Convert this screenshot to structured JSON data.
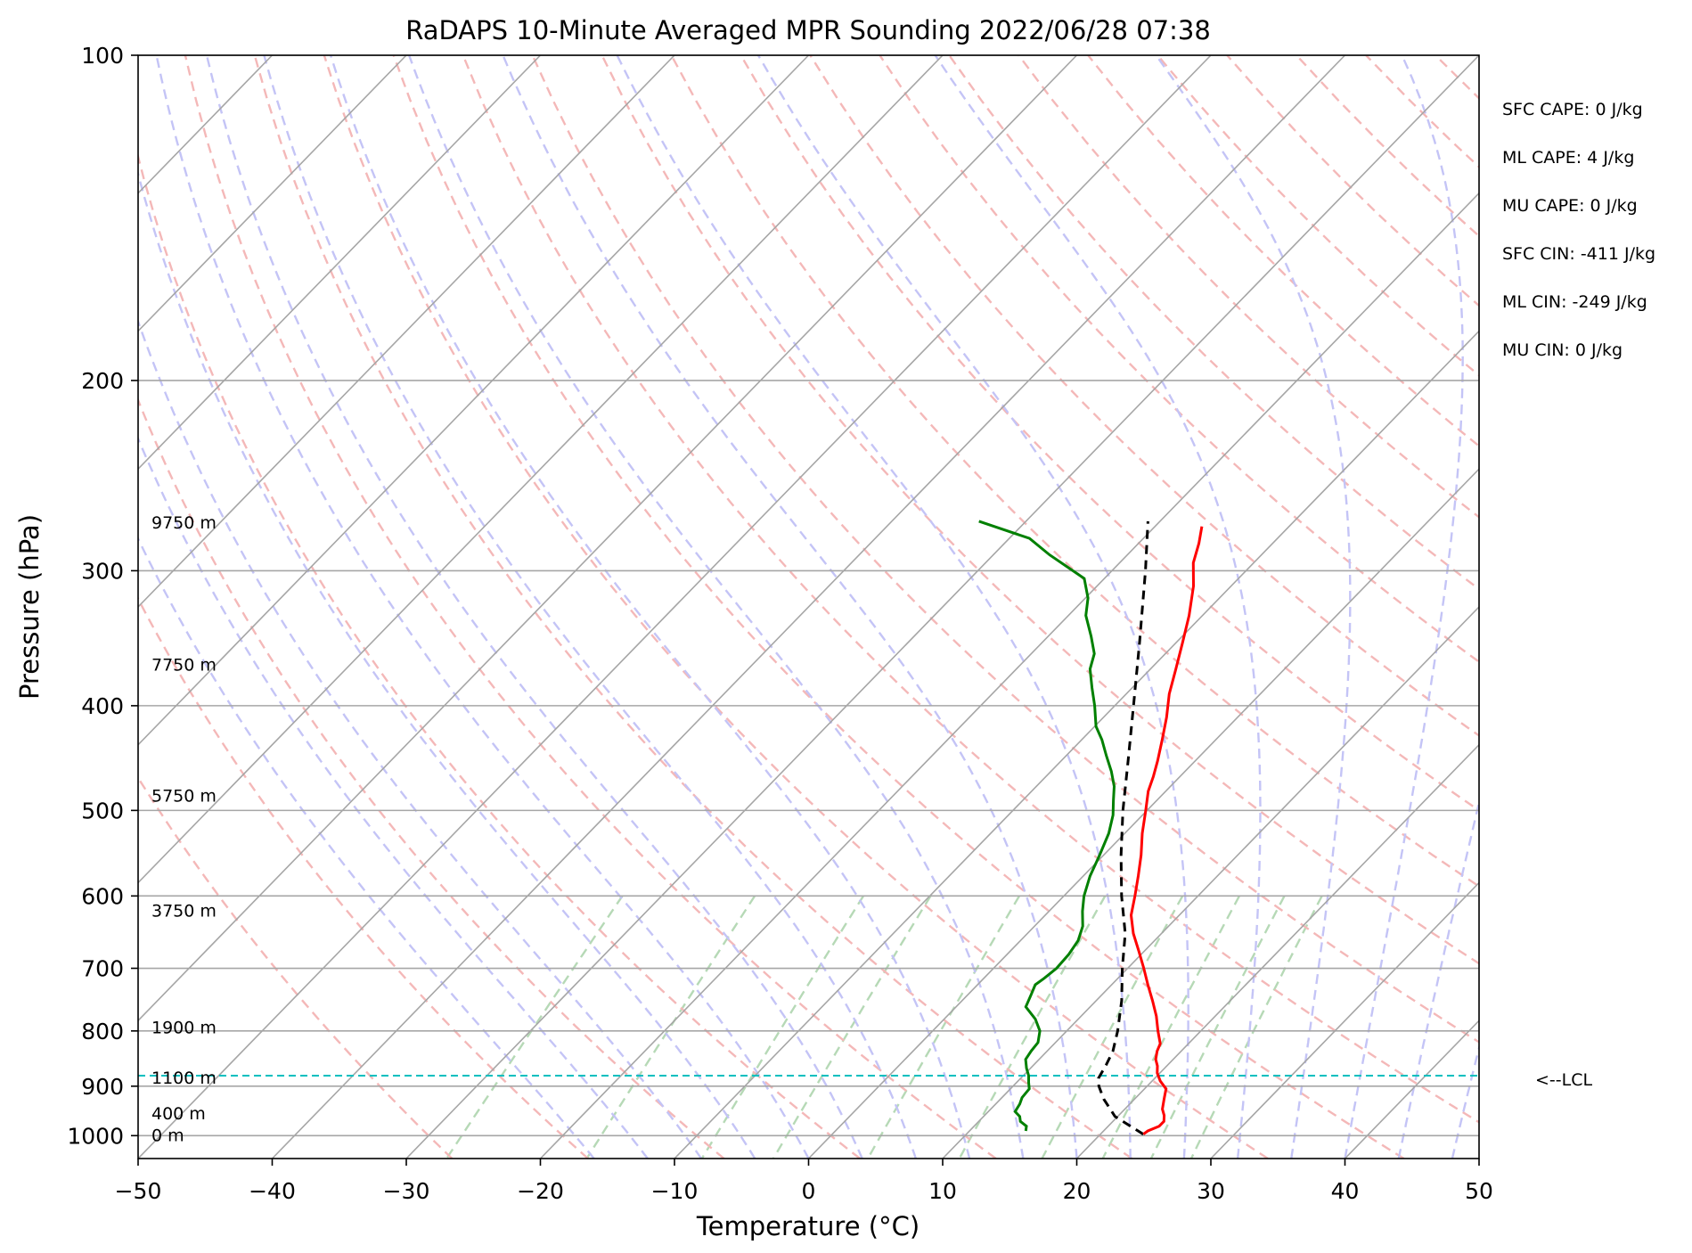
{
  "chart_data": {
    "type": "line",
    "title": "RaDAPS 10-Minute Averaged MPR Sounding 2022/06/28 07:38",
    "xlabel": "Temperature (°C)",
    "ylabel": "Pressure (hPa)",
    "xlim": [
      -50,
      50
    ],
    "ylim": [
      1050,
      100
    ],
    "y_scale": "log",
    "skew": "skew-T",
    "grid": true,
    "x_ticks": [
      -50,
      -40,
      -30,
      -20,
      -10,
      0,
      10,
      20,
      30,
      40,
      50
    ],
    "x_tick_labels": [
      "−50",
      "−40",
      "−30",
      "−20",
      "−10",
      "0",
      "10",
      "20",
      "30",
      "40",
      "50"
    ],
    "y_ticks": [
      100,
      200,
      300,
      400,
      500,
      600,
      700,
      800,
      900,
      1000
    ],
    "y_tick_labels": [
      "100",
      "200",
      "300",
      "400",
      "500",
      "600",
      "700",
      "800",
      "900",
      "1000"
    ],
    "series": [
      {
        "role": "temperature",
        "color": "#ff0000",
        "points": [
          [
            997,
            23.2
          ],
          [
            990,
            23.3
          ],
          [
            980,
            23.8
          ],
          [
            970,
            23.8
          ],
          [
            958,
            23.4
          ],
          [
            945,
            22.8
          ],
          [
            925,
            22.2
          ],
          [
            905,
            21.6
          ],
          [
            890,
            20.6
          ],
          [
            875,
            19.8
          ],
          [
            862,
            19.3
          ],
          [
            850,
            18.7
          ],
          [
            835,
            18.2
          ],
          [
            822,
            17.9
          ],
          [
            800,
            16.8
          ],
          [
            775,
            15.6
          ],
          [
            750,
            14.2
          ],
          [
            725,
            12.7
          ],
          [
            700,
            11.2
          ],
          [
            675,
            9.6
          ],
          [
            650,
            7.9
          ],
          [
            625,
            6.4
          ],
          [
            600,
            5.3
          ],
          [
            575,
            4.1
          ],
          [
            550,
            2.8
          ],
          [
            525,
            1.3
          ],
          [
            500,
            -0.1
          ],
          [
            480,
            -1.3
          ],
          [
            465,
            -2.0
          ],
          [
            450,
            -2.8
          ],
          [
            430,
            -4.0
          ],
          [
            410,
            -5.3
          ],
          [
            390,
            -6.8
          ],
          [
            370,
            -8.1
          ],
          [
            350,
            -9.5
          ],
          [
            330,
            -11.0
          ],
          [
            310,
            -12.8
          ],
          [
            295,
            -14.5
          ],
          [
            283,
            -15.5
          ],
          [
            273,
            -16.5
          ]
        ]
      },
      {
        "role": "dewpoint",
        "color": "#008000",
        "points": [
          [
            990,
            14.2
          ],
          [
            980,
            13.9
          ],
          [
            970,
            13.1
          ],
          [
            960,
            12.7
          ],
          [
            950,
            12.0
          ],
          [
            935,
            11.8
          ],
          [
            922,
            11.5
          ],
          [
            905,
            11.4
          ],
          [
            893,
            10.9
          ],
          [
            880,
            10.4
          ],
          [
            866,
            9.7
          ],
          [
            850,
            9.0
          ],
          [
            835,
            8.8
          ],
          [
            820,
            8.7
          ],
          [
            800,
            8.0
          ],
          [
            780,
            6.8
          ],
          [
            760,
            5.2
          ],
          [
            740,
            4.7
          ],
          [
            725,
            4.3
          ],
          [
            715,
            4.5
          ],
          [
            700,
            4.7
          ],
          [
            680,
            4.6
          ],
          [
            660,
            4.3
          ],
          [
            640,
            3.6
          ],
          [
            620,
            2.5
          ],
          [
            600,
            1.5
          ],
          [
            575,
            0.5
          ],
          [
            550,
            -0.3
          ],
          [
            525,
            -1.2
          ],
          [
            505,
            -2.2
          ],
          [
            490,
            -3.2
          ],
          [
            475,
            -4.2
          ],
          [
            460,
            -5.5
          ],
          [
            445,
            -7.0
          ],
          [
            430,
            -8.5
          ],
          [
            418,
            -9.9
          ],
          [
            400,
            -11.5
          ],
          [
            385,
            -13.0
          ],
          [
            370,
            -14.5
          ],
          [
            358,
            -15.3
          ],
          [
            345,
            -16.8
          ],
          [
            330,
            -18.7
          ],
          [
            318,
            -19.8
          ],
          [
            305,
            -21.5
          ],
          [
            290,
            -25.8
          ],
          [
            280,
            -28.5
          ],
          [
            270,
            -33.5
          ]
        ]
      },
      {
        "role": "parcel",
        "color": "#000000",
        "dashed": true,
        "points": [
          [
            997,
            23.2
          ],
          [
            960,
            19.8
          ],
          [
            925,
            17.7
          ],
          [
            900,
            16.4
          ],
          [
            885,
            15.8
          ],
          [
            860,
            15.4
          ],
          [
            835,
            14.9
          ],
          [
            800,
            13.8
          ],
          [
            750,
            11.9
          ],
          [
            700,
            9.6
          ],
          [
            650,
            7.3
          ],
          [
            600,
            4.3
          ],
          [
            550,
            1.3
          ],
          [
            500,
            -1.8
          ],
          [
            450,
            -5.0
          ],
          [
            400,
            -8.6
          ],
          [
            350,
            -12.7
          ],
          [
            300,
            -17.5
          ],
          [
            270,
            -20.9
          ]
        ]
      }
    ],
    "lcl_pressure": 880,
    "lcl_label": "<--LCL",
    "height_labels": [
      {
        "p": 1000,
        "text": "0 m"
      },
      {
        "p": 955,
        "text": "400 m"
      },
      {
        "p": 885,
        "text": "1100 m"
      },
      {
        "p": 795,
        "text": "1900 m"
      },
      {
        "p": 620,
        "text": "3750 m"
      },
      {
        "p": 485,
        "text": "5750 m"
      },
      {
        "p": 367,
        "text": "7750 m"
      },
      {
        "p": 271,
        "text": "9750 m"
      }
    ],
    "indices": [
      "SFC CAPE: 0 J/kg",
      "ML CAPE: 4 J/kg",
      "MU CAPE: 0 J/kg",
      "SFC CIN: -411 J/kg",
      "ML CIN: -249 J/kg",
      "MU CIN: 0 J/kg"
    ],
    "background_lines": {
      "isotherm_color": "#a6a6a6",
      "dry_adiabat_color": "#f4b8b8",
      "moist_adiabat_color": "#c4c4f6",
      "mixing_ratio_color": "#b6d9b6"
    }
  }
}
